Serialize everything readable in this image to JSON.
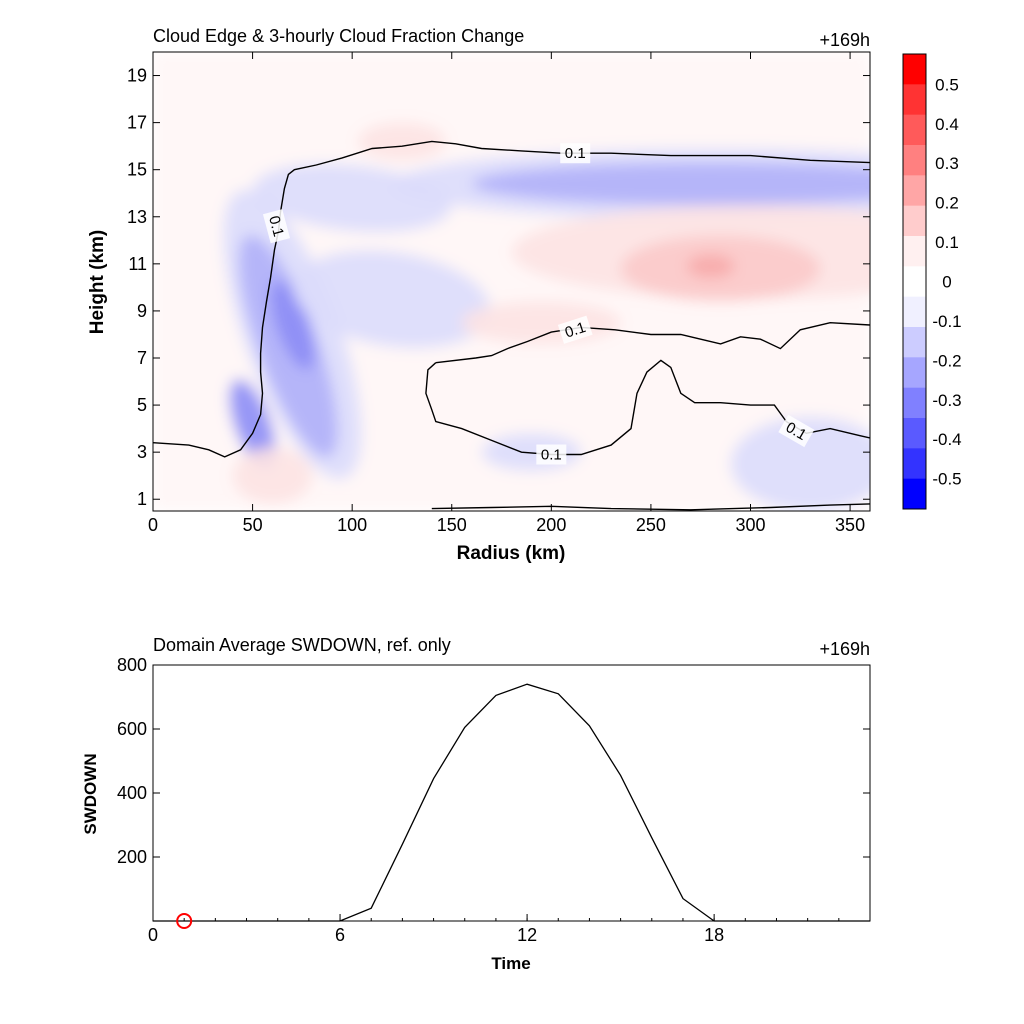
{
  "chart_data": [
    {
      "type": "heatmap",
      "title": "Cloud Edge & 3-hourly Cloud Fraction Change",
      "time_label": "+169h",
      "xlabel": "Radius (km)",
      "ylabel": "Height (km)",
      "xlim": [
        0,
        360
      ],
      "ylim": [
        0.5,
        20
      ],
      "xticks": [
        "0",
        "50",
        "100",
        "150",
        "200",
        "250",
        "300",
        "350"
      ],
      "yticks": [
        "1",
        "3",
        "5",
        "7",
        "9",
        "11",
        "13",
        "15",
        "17",
        "19"
      ],
      "colorbar": {
        "levels": [
          "0.5",
          "0.4",
          "0.3",
          "0.2",
          "0.1",
          "0",
          "-0.1",
          "-0.2",
          "-0.3",
          "-0.4",
          "-0.5"
        ],
        "colors": [
          "#ff0000",
          "#ff3333",
          "#ff5a5a",
          "#ff8080",
          "#ffa6a6",
          "#ffcccc",
          "#fff0f0",
          "#ffffff",
          "#f0f0ff",
          "#ccccff",
          "#a6a6ff",
          "#8080ff",
          "#5a5aff",
          "#3333ff",
          "#0000ff"
        ]
      },
      "contour_level_label": "0.1",
      "contour_lines": [
        [
          [
            0,
            3.4
          ],
          [
            18,
            3.3
          ],
          [
            28,
            3.1
          ],
          [
            36,
            2.8
          ],
          [
            44,
            3.1
          ],
          [
            50,
            3.8
          ],
          [
            54,
            4.6
          ],
          [
            55,
            5.5
          ],
          [
            54,
            6.4
          ],
          [
            54,
            7.2
          ],
          [
            55,
            8.3
          ],
          [
            57,
            9.4
          ],
          [
            59,
            10.4
          ],
          [
            61,
            11.6
          ],
          [
            63,
            12.4
          ],
          [
            64,
            13.2
          ],
          [
            66,
            14.2
          ],
          [
            68,
            14.8
          ],
          [
            71,
            15.0
          ],
          [
            82,
            15.2
          ],
          [
            95,
            15.5
          ],
          [
            110,
            15.9
          ],
          [
            125,
            16.0
          ],
          [
            140,
            16.2
          ],
          [
            152,
            16.1
          ],
          [
            165,
            15.9
          ],
          [
            185,
            15.8
          ],
          [
            205,
            15.7
          ],
          [
            230,
            15.7
          ],
          [
            260,
            15.6
          ],
          [
            300,
            15.6
          ],
          [
            330,
            15.4
          ],
          [
            360,
            15.3
          ]
        ],
        [
          [
            142,
            6.8
          ],
          [
            162,
            7.0
          ],
          [
            170,
            7.1
          ],
          [
            178,
            7.4
          ],
          [
            188,
            7.7
          ],
          [
            200,
            8.1
          ],
          [
            215,
            8.3
          ],
          [
            232,
            8.2
          ],
          [
            250,
            8.0
          ],
          [
            265,
            8.0
          ],
          [
            275,
            7.8
          ],
          [
            285,
            7.6
          ],
          [
            295,
            7.9
          ],
          [
            305,
            7.8
          ],
          [
            315,
            7.4
          ],
          [
            325,
            8.2
          ],
          [
            340,
            8.5
          ],
          [
            360,
            8.4
          ]
        ],
        [
          [
            142,
            6.8
          ],
          [
            138,
            6.5
          ],
          [
            137,
            5.5
          ],
          [
            140,
            4.8
          ],
          [
            142,
            4.3
          ],
          [
            155,
            4.0
          ],
          [
            170,
            3.5
          ],
          [
            185,
            3.0
          ],
          [
            200,
            2.9
          ],
          [
            215,
            2.9
          ],
          [
            230,
            3.3
          ],
          [
            240,
            4.0
          ],
          [
            243,
            5.5
          ],
          [
            248,
            6.4
          ],
          [
            255,
            6.9
          ],
          [
            260,
            6.6
          ],
          [
            265,
            5.5
          ],
          [
            272,
            5.1
          ],
          [
            285,
            5.1
          ],
          [
            300,
            5.0
          ],
          [
            312,
            5.0
          ],
          [
            318,
            4.3
          ],
          [
            328,
            3.8
          ],
          [
            340,
            4.0
          ],
          [
            355,
            3.7
          ],
          [
            360,
            3.6
          ]
        ],
        [
          [
            140,
            0.6
          ],
          [
            170,
            0.65
          ],
          [
            200,
            0.7
          ],
          [
            230,
            0.6
          ],
          [
            270,
            0.55
          ],
          [
            310,
            0.65
          ],
          [
            340,
            0.75
          ],
          [
            360,
            0.8
          ]
        ]
      ],
      "contour_labels": [
        {
          "x": 212,
          "y": 15.7,
          "text": "0.1",
          "angle": 0
        },
        {
          "x": 62,
          "y": 12.6,
          "text": "0.1",
          "angle": 75
        },
        {
          "x": 212,
          "y": 8.2,
          "text": "0.1",
          "angle": -18
        },
        {
          "x": 200,
          "y": 2.9,
          "text": "0.1",
          "angle": 0
        },
        {
          "x": 323,
          "y": 3.9,
          "text": "0.1",
          "angle": 30
        }
      ],
      "anomalies": [
        {
          "cx": 280,
          "cy": 14.4,
          "rx": 160,
          "ry": 1.5,
          "value": -0.1
        },
        {
          "cx": 280,
          "cy": 14.4,
          "rx": 120,
          "ry": 0.9,
          "value": -0.2
        },
        {
          "cx": 70,
          "cy": 8.0,
          "rx": 24,
          "ry": 6.5,
          "value": -0.1,
          "rot": 0.35
        },
        {
          "cx": 68,
          "cy": 7.5,
          "rx": 15,
          "ry": 5.0,
          "value": -0.2,
          "rot": 0.35
        },
        {
          "cx": 70,
          "cy": 8.4,
          "rx": 8,
          "ry": 2.0,
          "value": -0.3,
          "rot": 0.35
        },
        {
          "cx": 50,
          "cy": 4.2,
          "rx": 9,
          "ry": 2.0,
          "value": -0.3,
          "rot": 0.35
        },
        {
          "cx": 120,
          "cy": 9.5,
          "rx": 50,
          "ry": 2.0,
          "value": -0.1,
          "rot": -0.15
        },
        {
          "cx": 100,
          "cy": 13.8,
          "rx": 50,
          "ry": 1.4,
          "value": -0.1,
          "rot": -0.1
        },
        {
          "cx": 300,
          "cy": 11.5,
          "rx": 120,
          "ry": 2.0,
          "value": 0.1
        },
        {
          "cx": 285,
          "cy": 10.8,
          "rx": 50,
          "ry": 1.4,
          "value": 0.2
        },
        {
          "cx": 280,
          "cy": 10.9,
          "rx": 12,
          "ry": 0.5,
          "value": 0.3
        },
        {
          "cx": 125,
          "cy": 16.2,
          "rx": 22,
          "ry": 0.8,
          "value": 0.1
        },
        {
          "cx": 195,
          "cy": 8.5,
          "rx": 40,
          "ry": 0.9,
          "value": 0.1
        },
        {
          "cx": 330,
          "cy": 2.5,
          "rx": 40,
          "ry": 2.0,
          "value": -0.1
        },
        {
          "cx": 60,
          "cy": 2.0,
          "rx": 20,
          "ry": 1.2,
          "value": 0.1
        },
        {
          "cx": 190,
          "cy": 3.0,
          "rx": 25,
          "ry": 0.8,
          "value": -0.1
        }
      ]
    },
    {
      "type": "line",
      "title": "Domain Average SWDOWN, ref. only",
      "time_label": "+169h",
      "xlabel": "Time",
      "ylabel": "SWDOWN",
      "xlim": [
        0,
        23
      ],
      "ylim": [
        0,
        800
      ],
      "xticks": [
        "0",
        "6",
        "12",
        "18"
      ],
      "yticks": [
        "200",
        "400",
        "600",
        "800"
      ],
      "series": [
        {
          "x": [
            0,
            1,
            2,
            3,
            4,
            5,
            6,
            7,
            8,
            9,
            10,
            11,
            12,
            13,
            14,
            15,
            16,
            17,
            18,
            19,
            20,
            21,
            22,
            23
          ],
          "values": [
            0,
            0,
            0,
            0,
            0,
            0,
            0,
            40,
            240,
            445,
            605,
            705,
            740,
            710,
            610,
            455,
            260,
            70,
            0,
            0,
            0,
            0,
            0,
            0
          ],
          "color": "#000000"
        }
      ],
      "marker": {
        "x": 1,
        "y": 0,
        "color": "#ff0000",
        "shape": "circle"
      }
    }
  ]
}
